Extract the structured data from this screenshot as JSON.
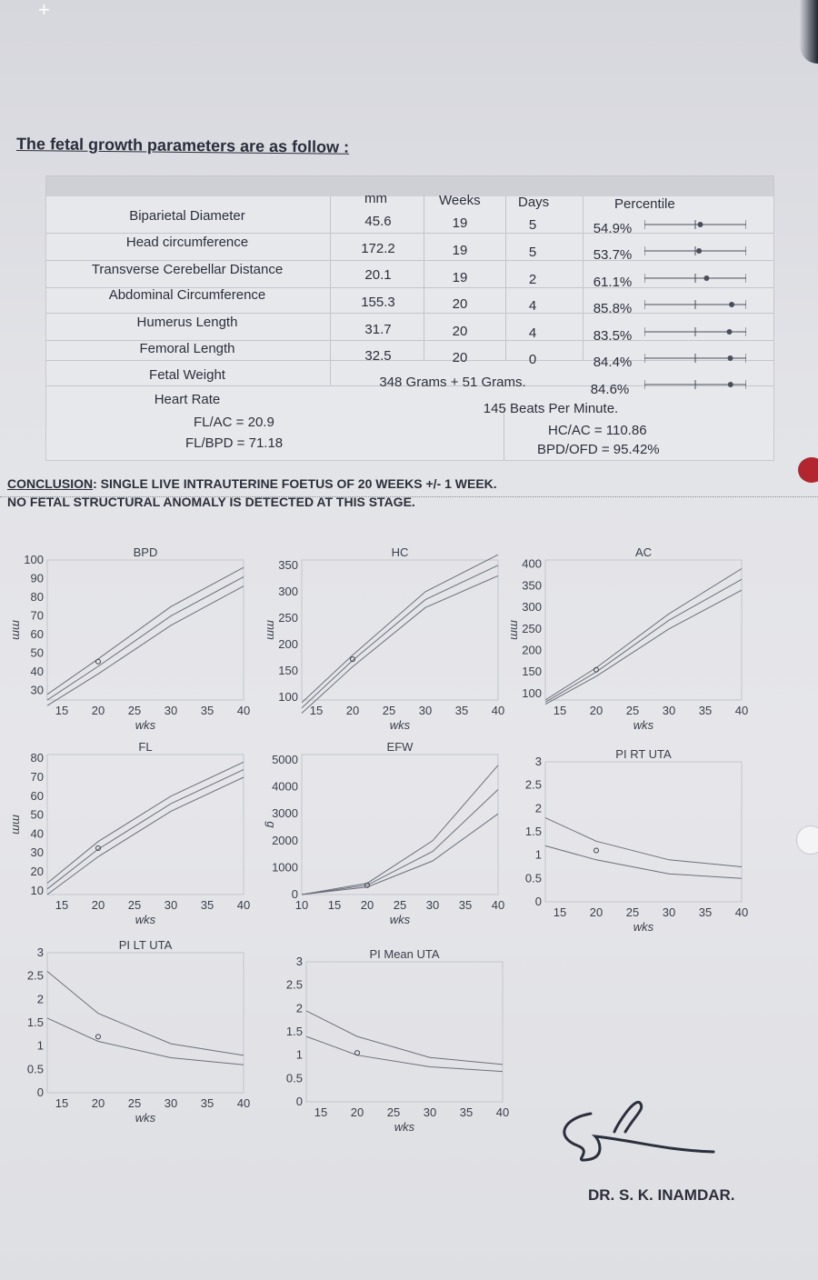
{
  "heading": "The fetal growth parameters are as follow :",
  "table": {
    "headers": {
      "mm": "mm",
      "weeks": "Weeks",
      "days": "Days",
      "percentile": "Percentile"
    },
    "rows": [
      {
        "name": "Biparietal Diameter",
        "mm": "45.6",
        "weeks": "19",
        "days": "5",
        "percentile": "54.9%",
        "pct": 0.549
      },
      {
        "name": "Head circumference",
        "mm": "172.2",
        "weeks": "19",
        "days": "5",
        "percentile": "53.7%",
        "pct": 0.537
      },
      {
        "name": "Transverse Cerebellar Distance",
        "mm": "20.1",
        "weeks": "19",
        "days": "2",
        "percentile": "61.1%",
        "pct": 0.611
      },
      {
        "name": "Abdominal Circumference",
        "mm": "155.3",
        "weeks": "20",
        "days": "4",
        "percentile": "85.8%",
        "pct": 0.858
      },
      {
        "name": "Humerus Length",
        "mm": "31.7",
        "weeks": "20",
        "days": "4",
        "percentile": "83.5%",
        "pct": 0.835
      },
      {
        "name": "Femoral Length",
        "mm": "32.5",
        "weeks": "20",
        "days": "0",
        "percentile": "84.4%",
        "pct": 0.844
      }
    ],
    "fetal_weight": {
      "name": "Fetal Weight",
      "value": "348 Grams + 51 Grams.",
      "percentile": "84.6%",
      "pct": 0.846
    },
    "heart_rate": {
      "name": "Heart Rate",
      "value": "145 Beats Per Minute."
    },
    "ratios": {
      "fl_ac": "FL/AC = 20.9",
      "fl_bpd": "FL/BPD = 71.18",
      "hc_ac": "HC/AC = 110.86",
      "bpd_ofd": "BPD/OFD = 95.42%"
    }
  },
  "conclusion": {
    "label": "CONCLUSION",
    "line1": ": SINGLE LIVE INTRAUTERINE FOETUS OF 20 WEEKS +/- 1 WEEK.",
    "line2": "NO FETAL STRUCTURAL ANOMALY IS DETECTED AT THIS STAGE."
  },
  "chart_data": [
    {
      "title": "BPD",
      "type": "line",
      "xlabel": "wks",
      "ylabel": "mm",
      "x_ticks": [
        "15",
        "20",
        "25",
        "30",
        "35",
        "40"
      ],
      "y_ticks": [
        "30",
        "40",
        "50",
        "60",
        "70",
        "80",
        "90",
        "100"
      ],
      "xlim": [
        13,
        40
      ],
      "ylim": [
        25,
        100
      ],
      "series": [
        {
          "values": [
            [
              13,
              28
            ],
            [
              20,
              47
            ],
            [
              30,
              75
            ],
            [
              40,
              96
            ]
          ]
        },
        {
          "values": [
            [
              13,
              25
            ],
            [
              20,
              43
            ],
            [
              30,
              70
            ],
            [
              40,
              91
            ]
          ]
        },
        {
          "values": [
            [
              13,
              22
            ],
            [
              20,
              39
            ],
            [
              30,
              65
            ],
            [
              40,
              86
            ]
          ]
        }
      ],
      "point": [
        20,
        45.6
      ]
    },
    {
      "title": "HC",
      "type": "line",
      "xlabel": "wks",
      "ylabel": "mm",
      "x_ticks": [
        "15",
        "20",
        "25",
        "30",
        "35",
        "40"
      ],
      "y_ticks": [
        "100",
        "150",
        "200",
        "250",
        "300",
        "350"
      ],
      "xlim": [
        13,
        40
      ],
      "ylim": [
        95,
        360
      ],
      "series": [
        {
          "values": [
            [
              13,
              90
            ],
            [
              20,
              180
            ],
            [
              30,
              300
            ],
            [
              40,
              370
            ]
          ]
        },
        {
          "values": [
            [
              13,
              80
            ],
            [
              20,
              170
            ],
            [
              30,
              285
            ],
            [
              40,
              350
            ]
          ]
        },
        {
          "values": [
            [
              13,
              70
            ],
            [
              20,
              158
            ],
            [
              30,
              270
            ],
            [
              40,
              330
            ]
          ]
        }
      ],
      "point": [
        20,
        172.2
      ]
    },
    {
      "title": "AC",
      "type": "line",
      "xlabel": "wks",
      "ylabel": "mm",
      "x_ticks": [
        "15",
        "20",
        "25",
        "30",
        "35",
        "40"
      ],
      "y_ticks": [
        "100",
        "150",
        "200",
        "250",
        "300",
        "350",
        "400"
      ],
      "xlim": [
        13,
        40
      ],
      "ylim": [
        85,
        410
      ],
      "series": [
        {
          "values": [
            [
              13,
              85
            ],
            [
              20,
              160
            ],
            [
              30,
              285
            ],
            [
              40,
              390
            ]
          ]
        },
        {
          "values": [
            [
              13,
              80
            ],
            [
              20,
              150
            ],
            [
              30,
              270
            ],
            [
              40,
              365
            ]
          ]
        },
        {
          "values": [
            [
              13,
              75
            ],
            [
              20,
              140
            ],
            [
              30,
              250
            ],
            [
              40,
              340
            ]
          ]
        }
      ],
      "point": [
        20,
        155.3
      ]
    },
    {
      "title": "FL",
      "type": "line",
      "xlabel": "wks",
      "ylabel": "mm",
      "x_ticks": [
        "15",
        "20",
        "25",
        "30",
        "35",
        "40"
      ],
      "y_ticks": [
        "10",
        "20",
        "30",
        "40",
        "50",
        "60",
        "70",
        "80"
      ],
      "xlim": [
        13,
        40
      ],
      "ylim": [
        8,
        82
      ],
      "series": [
        {
          "values": [
            [
              13,
              14
            ],
            [
              20,
              36
            ],
            [
              30,
              60
            ],
            [
              40,
              78
            ]
          ]
        },
        {
          "values": [
            [
              13,
              11
            ],
            [
              20,
              32
            ],
            [
              30,
              56
            ],
            [
              40,
              74
            ]
          ]
        },
        {
          "values": [
            [
              13,
              8
            ],
            [
              20,
              28
            ],
            [
              30,
              52
            ],
            [
              40,
              70
            ]
          ]
        }
      ],
      "point": [
        20,
        32.5
      ]
    },
    {
      "title": "EFW",
      "type": "line",
      "xlabel": "wks",
      "ylabel": "g",
      "x_ticks": [
        "10",
        "15",
        "20",
        "25",
        "30",
        "35",
        "40"
      ],
      "y_ticks": [
        "0",
        "1000",
        "2000",
        "3000",
        "4000",
        "5000"
      ],
      "xlim": [
        10,
        40
      ],
      "ylim": [
        0,
        5200
      ],
      "series": [
        {
          "values": [
            [
              10,
              0
            ],
            [
              20,
              420
            ],
            [
              30,
              2000
            ],
            [
              40,
              4800
            ]
          ]
        },
        {
          "values": [
            [
              10,
              0
            ],
            [
              20,
              348
            ],
            [
              30,
              1600
            ],
            [
              40,
              3900
            ]
          ]
        },
        {
          "values": [
            [
              10,
              0
            ],
            [
              20,
              280
            ],
            [
              30,
              1250
            ],
            [
              40,
              3000
            ]
          ]
        }
      ],
      "point": [
        20,
        348
      ]
    },
    {
      "title": "PI RT UTA",
      "type": "line",
      "xlabel": "wks",
      "ylabel": "",
      "x_ticks": [
        "15",
        "20",
        "25",
        "30",
        "35",
        "40"
      ],
      "y_ticks": [
        "0",
        "0.5",
        "1",
        "1.5",
        "2",
        "2.5",
        "3"
      ],
      "xlim": [
        13,
        40
      ],
      "ylim": [
        0,
        3
      ],
      "series": [
        {
          "values": [
            [
              13,
              1.8
            ],
            [
              20,
              1.3
            ],
            [
              30,
              0.9
            ],
            [
              40,
              0.75
            ]
          ]
        },
        {
          "values": [
            [
              13,
              1.2
            ],
            [
              20,
              0.9
            ],
            [
              30,
              0.6
            ],
            [
              40,
              0.5
            ]
          ]
        }
      ],
      "point": [
        20,
        1.1
      ]
    },
    {
      "title": "PI LT UTA",
      "type": "line",
      "xlabel": "wks",
      "ylabel": "",
      "x_ticks": [
        "15",
        "20",
        "25",
        "30",
        "35",
        "40"
      ],
      "y_ticks": [
        "0",
        "0.5",
        "1",
        "1.5",
        "2",
        "2.5",
        "3"
      ],
      "xlim": [
        13,
        40
      ],
      "ylim": [
        0,
        3
      ],
      "series": [
        {
          "values": [
            [
              13,
              2.6
            ],
            [
              20,
              1.7
            ],
            [
              30,
              1.05
            ],
            [
              40,
              0.8
            ]
          ]
        },
        {
          "values": [
            [
              13,
              1.6
            ],
            [
              20,
              1.1
            ],
            [
              30,
              0.75
            ],
            [
              40,
              0.6
            ]
          ]
        }
      ],
      "point": [
        20,
        1.2
      ]
    },
    {
      "title": "PI Mean UTA",
      "type": "line",
      "xlabel": "wks",
      "ylabel": "",
      "x_ticks": [
        "15",
        "20",
        "25",
        "30",
        "35",
        "40"
      ],
      "y_ticks": [
        "0",
        "0.5",
        "1",
        "1.5",
        "2",
        "2.5",
        "3"
      ],
      "xlim": [
        13,
        40
      ],
      "ylim": [
        0,
        3
      ],
      "series": [
        {
          "values": [
            [
              13,
              1.95
            ],
            [
              20,
              1.4
            ],
            [
              30,
              0.95
            ],
            [
              40,
              0.8
            ]
          ]
        },
        {
          "values": [
            [
              13,
              1.4
            ],
            [
              20,
              1.0
            ],
            [
              30,
              0.75
            ],
            [
              40,
              0.65
            ]
          ]
        }
      ],
      "point": [
        20,
        1.05
      ]
    }
  ],
  "doctor": "DR. S. K. INAMDAR."
}
